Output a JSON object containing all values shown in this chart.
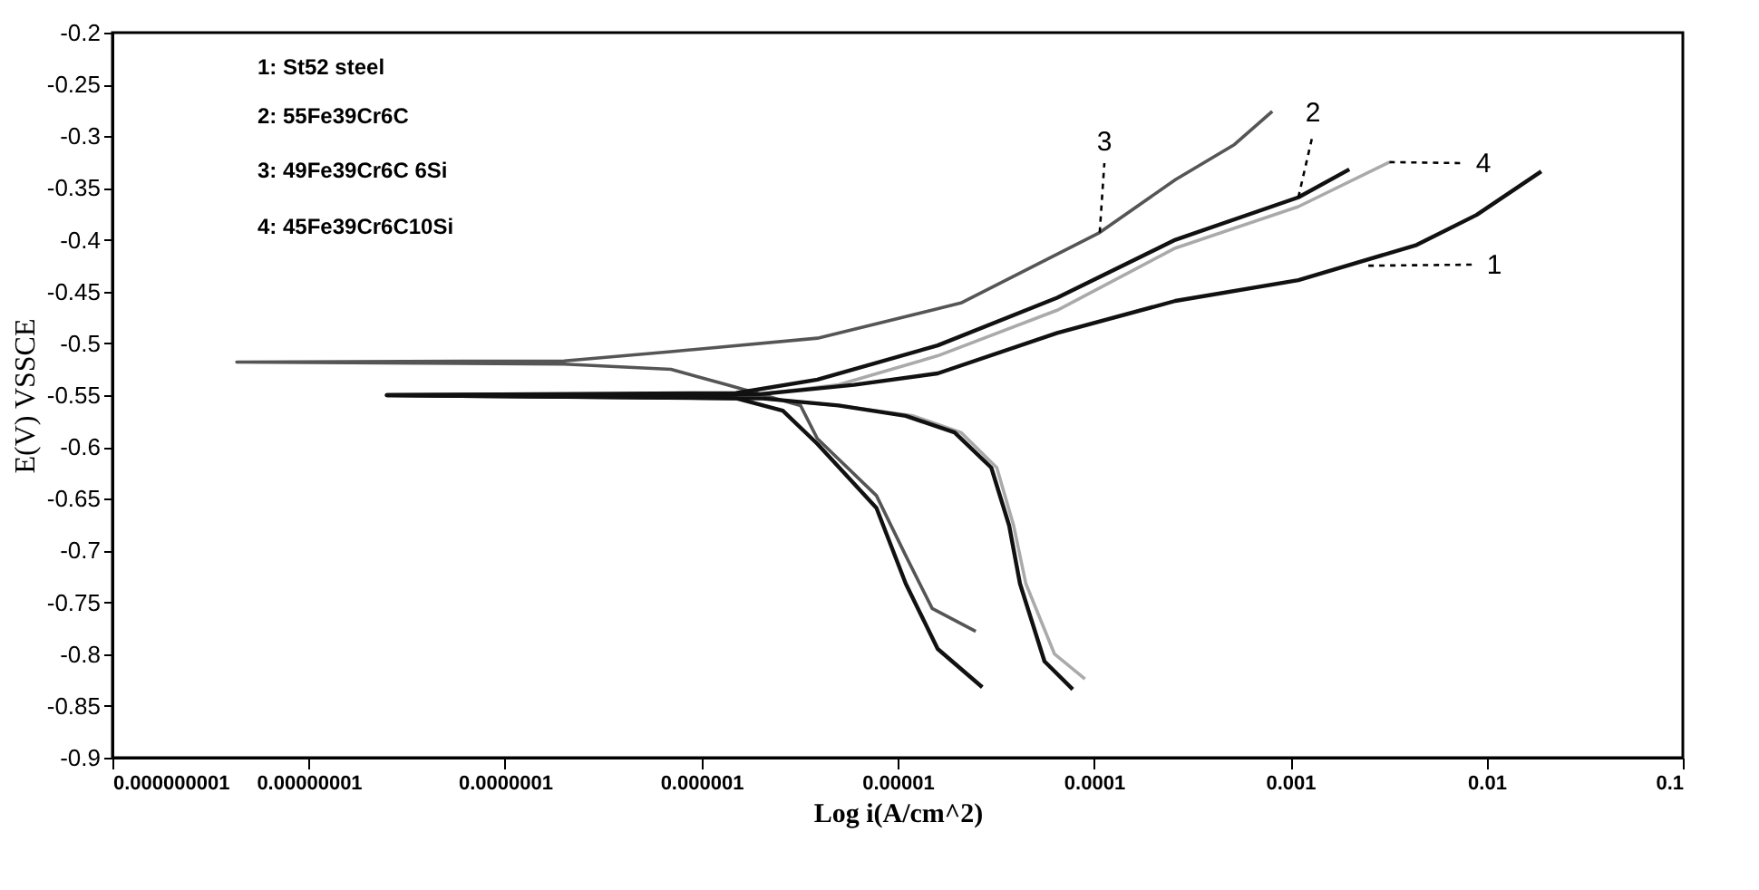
{
  "chart_data": {
    "type": "line",
    "xlabel": "Log i(A/cm^2)",
    "ylabel": "E(V) VSSCE",
    "log": "x",
    "grid": false,
    "marker": "none",
    "line_style": "solid",
    "xlim": [
      1e-09,
      0.1
    ],
    "ylim": [
      -0.9,
      -0.2
    ],
    "xticks": [
      {
        "value": 1e-09,
        "label": "0.000000001"
      },
      {
        "value": 1e-08,
        "label": "0.00000001"
      },
      {
        "value": 1e-07,
        "label": "0.0000001"
      },
      {
        "value": 1e-06,
        "label": "0.000001"
      },
      {
        "value": 1e-05,
        "label": "0.00001"
      },
      0.0001,
      0.001,
      0.01,
      0.1
    ],
    "yticks": [
      -0.2,
      -0.25,
      -0.3,
      -0.35,
      -0.4,
      -0.45,
      -0.5,
      -0.55,
      -0.6,
      -0.65,
      -0.7,
      -0.75,
      -0.8,
      -0.85,
      -0.9
    ],
    "series": [
      {
        "color": "#aaaaaa",
        "x": [
          9e-05,
          6.3e-05,
          4.5e-05,
          3.9e-05,
          3.2e-05,
          2.1e-05,
          1.2e-05,
          5e-06,
          2e-06,
          2.5e-08,
          2e-06,
          5e-06,
          1.6e-05,
          6.5e-05,
          0.00026,
          0.0011,
          0.0032
        ],
        "values": [
          -0.824,
          -0.8,
          -0.732,
          -0.676,
          -0.62,
          -0.586,
          -0.57,
          -0.56,
          -0.553,
          -0.55,
          -0.549,
          -0.54,
          -0.512,
          -0.468,
          -0.408,
          -0.368,
          -0.325
        ]
      },
      {
        "color": "#555555",
        "x": [
          2.5e-05,
          1.5e-05,
          1.1e-05,
          7.8e-06,
          3.9e-06,
          3.2e-06,
          1.35e-06,
          7e-07,
          2e-07,
          4.3e-09,
          2e-07,
          7e-07,
          3.9e-06,
          2.1e-05,
          0.000107,
          0.00026,
          0.00052,
          0.00081
        ],
        "values": [
          -0.778,
          -0.756,
          -0.705,
          -0.647,
          -0.592,
          -0.56,
          -0.54,
          -0.525,
          -0.52,
          -0.518,
          -0.517,
          -0.508,
          -0.495,
          -0.461,
          -0.393,
          -0.342,
          -0.308,
          -0.276
        ]
      },
      {
        "color": "#111111",
        "x": [
          2.7e-05,
          1.6e-05,
          1.1e-05,
          7.8e-06,
          3.9e-06,
          2.6e-06,
          1.5e-06,
          2.5e-08,
          1.5e-06,
          3.9e-06,
          1.6e-05,
          6.5e-05,
          0.00026,
          0.0011,
          0.002
        ],
        "values": [
          -0.832,
          -0.795,
          -0.732,
          -0.659,
          -0.597,
          -0.565,
          -0.553,
          -0.55,
          -0.548,
          -0.535,
          -0.502,
          -0.456,
          -0.4,
          -0.359,
          -0.332
        ]
      },
      {
        "color": "#111111",
        "x": [
          7.8e-05,
          5.6e-05,
          4.2e-05,
          3.7e-05,
          3e-05,
          1.95e-05,
          1.1e-05,
          5e-06,
          2e-06,
          2.5e-08,
          2e-06,
          6e-06,
          1.6e-05,
          6.5e-05,
          0.00026,
          0.0011,
          0.0044,
          0.0089,
          0.019
        ],
        "values": [
          -0.834,
          -0.807,
          -0.732,
          -0.676,
          -0.62,
          -0.586,
          -0.57,
          -0.56,
          -0.553,
          -0.55,
          -0.549,
          -0.54,
          -0.529,
          -0.49,
          -0.459,
          -0.439,
          -0.405,
          -0.376,
          -0.334
        ]
      }
    ],
    "annotations": [
      "1: St52 steel",
      "2: 55Fe39Cr6C",
      "3: 49Fe39Cr6C 6Si",
      "4: 45Fe39Cr6C10Si",
      {
        "text": "3",
        "x": 0.000107,
        "y": -0.393
      },
      {
        "text": "2",
        "x": 0.0011,
        "y": -0.359
      },
      {
        "text": "4",
        "x": 0.0032,
        "y": -0.325
      },
      {
        "text": "1",
        "x": 0.0025,
        "y": -0.425
      }
    ]
  }
}
